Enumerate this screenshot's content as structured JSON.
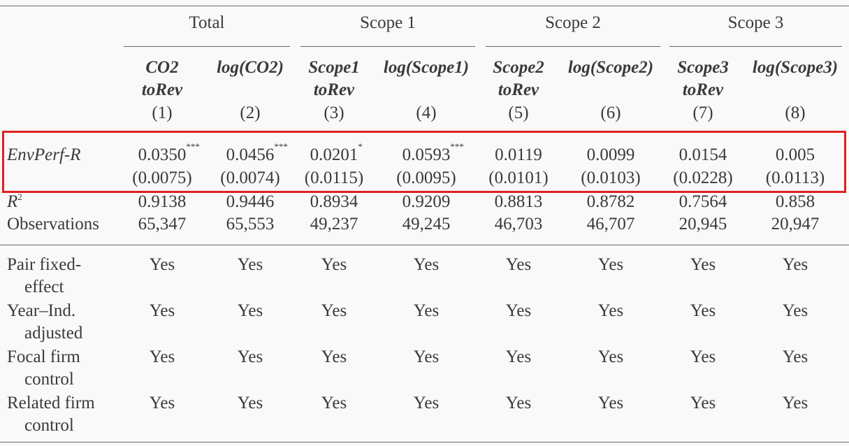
{
  "table": {
    "groups": [
      "Total",
      "Scope 1",
      "Scope 2",
      "Scope 3"
    ],
    "columns": [
      {
        "name_lines": [
          "CO2",
          "toRev"
        ],
        "number": "(1)"
      },
      {
        "name_lines": [
          "log(CO2)"
        ],
        "number": "(2)"
      },
      {
        "name_lines": [
          "Scope1",
          "toRev"
        ],
        "number": "(3)"
      },
      {
        "name_lines": [
          "log(Scope1)"
        ],
        "number": "(4)"
      },
      {
        "name_lines": [
          "Scope2",
          "toRev"
        ],
        "number": "(5)"
      },
      {
        "name_lines": [
          "log(Scope2)"
        ],
        "number": "(6)"
      },
      {
        "name_lines": [
          "Scope3",
          "toRev"
        ],
        "number": "(7)"
      },
      {
        "name_lines": [
          "log(Scope3)"
        ],
        "number": "(8)"
      }
    ],
    "coefficient_row": {
      "label": "EnvPerf-R",
      "coefficients": [
        {
          "value": "0.0350",
          "stars": "***"
        },
        {
          "value": "0.0456",
          "stars": "***"
        },
        {
          "value": "0.0201",
          "stars": "*"
        },
        {
          "value": "0.0593",
          "stars": "***"
        },
        {
          "value": "0.0119"
        },
        {
          "value": "0.0099"
        },
        {
          "value": "0.0154"
        },
        {
          "value": "0.005"
        }
      ],
      "standard_errors": [
        "(0.0075)",
        "(0.0074)",
        "(0.0115)",
        "(0.0095)",
        "(0.0101)",
        "(0.0103)",
        "(0.0228)",
        "(0.0113)"
      ]
    },
    "r_squared_row": {
      "label": {
        "text": "R",
        "sup": "2"
      },
      "values": [
        "0.9138",
        "0.9446",
        "0.8934",
        "0.9209",
        "0.8813",
        "0.8782",
        "0.7564",
        "0.858"
      ]
    },
    "observations_row": {
      "label": "Observations",
      "values": [
        "65,347",
        "65,553",
        "49,237",
        "49,245",
        "46,703",
        "46,707",
        "20,945",
        "20,947"
      ]
    },
    "control_rows": [
      {
        "label_lines": [
          "Pair fixed-",
          "effect"
        ],
        "values": [
          "Yes",
          "Yes",
          "Yes",
          "Yes",
          "Yes",
          "Yes",
          "Yes",
          "Yes"
        ]
      },
      {
        "label_lines": [
          "Year–Ind.",
          "adjusted"
        ],
        "values": [
          "Yes",
          "Yes",
          "Yes",
          "Yes",
          "Yes",
          "Yes",
          "Yes",
          "Yes"
        ]
      },
      {
        "label_lines": [
          "Focal firm",
          "control"
        ],
        "values": [
          "Yes",
          "Yes",
          "Yes",
          "Yes",
          "Yes",
          "Yes",
          "Yes",
          "Yes"
        ]
      },
      {
        "label_lines": [
          "Related firm",
          "control"
        ],
        "values": [
          "Yes",
          "Yes",
          "Yes",
          "Yes",
          "Yes",
          "Yes",
          "Yes",
          "Yes"
        ]
      }
    ]
  }
}
